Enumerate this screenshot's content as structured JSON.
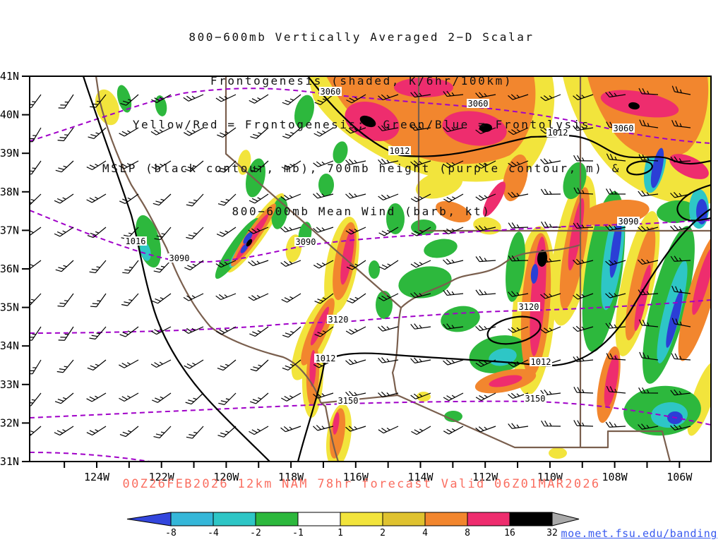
{
  "title": {
    "lines": [
      "800−600mb Vertically Averaged 2−D Scalar",
      "Frontogenesis (shaded, K/6hr/100km)",
      "Yellow/Red = Frontogenesis;  Green/Blue = Frontolysis",
      "MSLP (black contour, mb), 700mb height (purple contour, m) &",
      "800−600mb Mean Wind (barb, kt)"
    ]
  },
  "caption": "00Z26FEB2026 12km NAM 78hr forecast Valid 06Z01MAR2026",
  "credit": "moe.met.fsu.edu/banding",
  "chart_data": {
    "type": "heatmap",
    "title": "800-600mb Vertically Averaged 2-D Scalar Frontogenesis",
    "shaded_variable": "Frontogenesis",
    "shaded_units": "K/6hr/100km",
    "legend_note_positive": "Yellow/Red = Frontogenesis",
    "legend_note_negative": "Green/Blue = Frontolysis",
    "y_axis": {
      "ticks": [
        "41N",
        "40N",
        "39N",
        "38N",
        "37N",
        "36N",
        "35N",
        "34N",
        "33N",
        "32N",
        "31N"
      ]
    },
    "x_axis": {
      "ticks": [
        "124W",
        "122W",
        "120W",
        "118W",
        "116W",
        "114W",
        "112W",
        "110W",
        "108W",
        "106W"
      ]
    },
    "colorbar": {
      "tick_labels": [
        "-8",
        "-4",
        "-2",
        "-1",
        "1",
        "2",
        "4",
        "8",
        "16",
        "32"
      ],
      "segment_colors": [
        "#35b7d9",
        "#2ec6c6",
        "#2db83d",
        "#ffffff",
        "#f2e43c",
        "#dfc22f",
        "#f2862e",
        "#ee2d6e",
        "#000000"
      ],
      "below_min_color": "#3346dd",
      "above_max_color": "#a9a9a9"
    },
    "contours": {
      "mslp": {
        "style": "black solid contour",
        "units": "mb",
        "labels": [
          "1016",
          "1012",
          "1012",
          "1012",
          "1012"
        ]
      },
      "height_700mb": {
        "style": "purple dashed contour",
        "units": "m",
        "labels": [
          "3060",
          "3060",
          "3060",
          "3090",
          "3090",
          "3090",
          "3120",
          "3120",
          "3150",
          "3150"
        ]
      }
    },
    "wind": {
      "style": "barb",
      "units": "kt",
      "layer": "800-600mb mean wind"
    },
    "model_run": "00Z26FEB2026",
    "model": "12km NAM",
    "forecast_hour": "78hr",
    "valid_time": "06Z01MAR2026"
  }
}
